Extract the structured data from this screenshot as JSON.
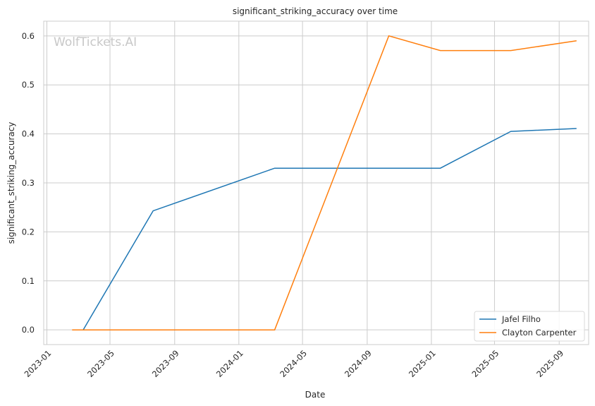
{
  "chart_data": {
    "type": "line",
    "title": "significant_striking_accuracy over time",
    "xlabel": "Date",
    "ylabel": "significant_striking_accuracy",
    "watermark": "WolfTickets.AI",
    "x_ticks": [
      "2023-01",
      "2023-05",
      "2023-09",
      "2024-01",
      "2024-05",
      "2024-09",
      "2025-01",
      "2025-05",
      "2025-09"
    ],
    "y_ticks": [
      "0.0",
      "0.1",
      "0.2",
      "0.3",
      "0.4",
      "0.5",
      "0.6"
    ],
    "xlim": [
      "2022-12-26",
      "2025-10-27"
    ],
    "ylim": [
      -0.03,
      0.63
    ],
    "grid": true,
    "legend_position": "lower-right",
    "series": [
      {
        "name": "Jafel Filho",
        "color": "#1f77b4",
        "points": [
          {
            "x": "2023-03-11",
            "y": 0.0
          },
          {
            "x": "2023-07-22",
            "y": 0.243
          },
          {
            "x": "2024-03-09",
            "y": 0.33
          },
          {
            "x": "2025-01-18",
            "y": 0.33
          },
          {
            "x": "2025-06-01",
            "y": 0.405
          },
          {
            "x": "2025-10-04",
            "y": 0.411
          }
        ]
      },
      {
        "name": "Clayton Carpenter",
        "color": "#ff7f0e",
        "points": [
          {
            "x": "2023-02-18",
            "y": 0.0
          },
          {
            "x": "2024-03-09",
            "y": 0.0
          },
          {
            "x": "2024-10-12",
            "y": 0.6
          },
          {
            "x": "2025-01-18",
            "y": 0.57
          },
          {
            "x": "2025-06-01",
            "y": 0.57
          },
          {
            "x": "2025-10-04",
            "y": 0.59
          }
        ]
      }
    ]
  }
}
